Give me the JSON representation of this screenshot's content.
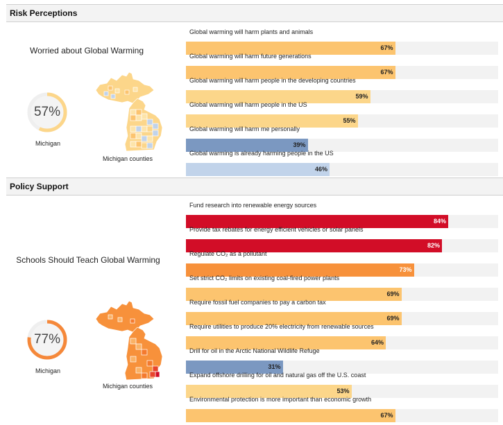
{
  "risk": {
    "header": "Risk Perceptions",
    "metric_title": "Worried about Global Warming",
    "donut": {
      "value_text": "57%",
      "value": 57,
      "color": "#fcd68a",
      "track": "#efefef"
    },
    "state_label": "Michigan",
    "map_label": "Michigan counties",
    "rows": [
      {
        "label": "Global warming will harm plants and animals",
        "value": 67,
        "value_text": "67%",
        "color": "#fcc46f"
      },
      {
        "label": "Global warming will harm future generations",
        "value": 67,
        "value_text": "67%",
        "color": "#fcc46f"
      },
      {
        "label": "Global warming will harm people in the developing countries",
        "value": 59,
        "value_text": "59%",
        "color": "#fcd68a"
      },
      {
        "label": "Global warming will harm people in the US",
        "value": 55,
        "value_text": "55%",
        "color": "#fcd68a"
      },
      {
        "label": "Global warming will harm me personally",
        "value": 39,
        "value_text": "39%",
        "color": "#7b98c1"
      },
      {
        "label": "Global warming is already harming people in the US",
        "value": 46,
        "value_text": "46%",
        "color": "#c1d3ea"
      }
    ]
  },
  "policy": {
    "header": "Policy Support",
    "metric_title": "Schools Should Teach Global Warming",
    "donut": {
      "value_text": "77%",
      "value": 77,
      "color": "#f5883a",
      "track": "#efefef"
    },
    "state_label": "Michigan",
    "map_label": "Michigan counties",
    "rows": [
      {
        "label": "Fund research into renewable energy sources",
        "value": 84,
        "value_text": "84%",
        "color": "#d20d27"
      },
      {
        "label": "Provide tax rebates for energy efficient vehicles or solar panels",
        "value": 82,
        "value_text": "82%",
        "color": "#d20d27"
      },
      {
        "label": "Regulate CO₂ as a pollutant",
        "value": 73,
        "value_text": "73%",
        "color": "#f7913b"
      },
      {
        "label": "Set strict CO₂ limits on existing coal-fired power plants",
        "value": 69,
        "value_text": "69%",
        "color": "#fcc46f"
      },
      {
        "label": "Require fossil fuel companies to pay a carbon tax",
        "value": 69,
        "value_text": "69%",
        "color": "#fcc46f"
      },
      {
        "label": "Require utilities to produce 20% electricity from renewable sources",
        "value": 64,
        "value_text": "64%",
        "color": "#fcc46f"
      },
      {
        "label": "Drill for oil in the Arctic National Wildlife Refuge",
        "value": 31,
        "value_text": "31%",
        "color": "#7b98c1"
      },
      {
        "label": "Expand offshore drilling for oil and natural gas off the U.S. coast",
        "value": 53,
        "value_text": "53%",
        "color": "#fcd68a"
      },
      {
        "label": "Environmental protection is more important than economic growth",
        "value": 67,
        "value_text": "67%",
        "color": "#fcc46f"
      }
    ]
  }
}
